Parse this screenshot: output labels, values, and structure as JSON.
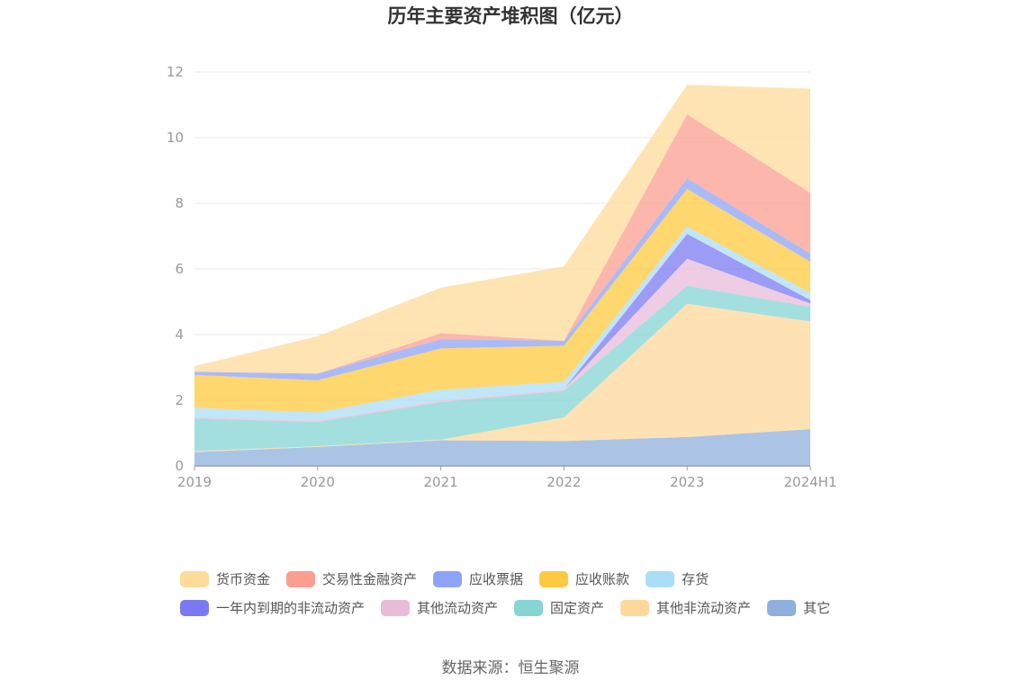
{
  "chart_data": {
    "type": "area",
    "stacked": true,
    "title": "历年主要资产堆积图（亿元）",
    "xlabel": "",
    "ylabel": "",
    "categories": [
      "2019",
      "2020",
      "2021",
      "2022",
      "2023",
      "2024H1"
    ],
    "ylim": [
      0,
      12
    ],
    "yticks": [
      0,
      2,
      4,
      6,
      8,
      10,
      12
    ],
    "grid": true,
    "legend_position": "bottom",
    "series": [
      {
        "name": "其它",
        "color": "#8fb0dc",
        "values": [
          0.42,
          0.58,
          0.78,
          0.76,
          0.88,
          1.12
        ]
      },
      {
        "name": "其他非流动资产",
        "color": "#fdd89a",
        "values": [
          0.03,
          0.02,
          0.02,
          0.72,
          4.06,
          3.28
        ]
      },
      {
        "name": "固定资产",
        "color": "#86d4d4",
        "values": [
          1.0,
          0.74,
          1.15,
          0.81,
          0.55,
          0.45
        ]
      },
      {
        "name": "其他流动资产",
        "color": "#e8bbd9",
        "values": [
          0.04,
          0.05,
          0.05,
          0.05,
          0.82,
          0.1
        ]
      },
      {
        "name": "一年内到期的非流动资产",
        "color": "#7b79f1",
        "values": [
          0.0,
          0.0,
          0.0,
          0.0,
          0.76,
          0.1
        ]
      },
      {
        "name": "存货",
        "color": "#a9def7",
        "values": [
          0.28,
          0.24,
          0.32,
          0.22,
          0.22,
          0.22
        ]
      },
      {
        "name": "应收账款",
        "color": "#fec93f",
        "values": [
          1.0,
          0.98,
          1.26,
          1.1,
          1.15,
          0.95
        ]
      },
      {
        "name": "应收票据",
        "color": "#8ea3f7",
        "values": [
          0.1,
          0.2,
          0.28,
          0.15,
          0.32,
          0.25
        ]
      },
      {
        "name": "交易性金融资产",
        "color": "#fb9e8f",
        "values": [
          0.0,
          0.0,
          0.18,
          0.0,
          1.95,
          1.85
        ]
      },
      {
        "name": "货币资金",
        "color": "#fedb9a",
        "values": [
          0.17,
          1.14,
          1.39,
          2.27,
          0.9,
          3.17
        ]
      }
    ],
    "legend_order": [
      "货币资金",
      "交易性金融资产",
      "应收票据",
      "应收账款",
      "存货",
      "一年内到期的非流动资产",
      "其他流动资产",
      "固定资产",
      "其他非流动资产",
      "其它"
    ]
  },
  "source": "数据来源：恒生聚源"
}
